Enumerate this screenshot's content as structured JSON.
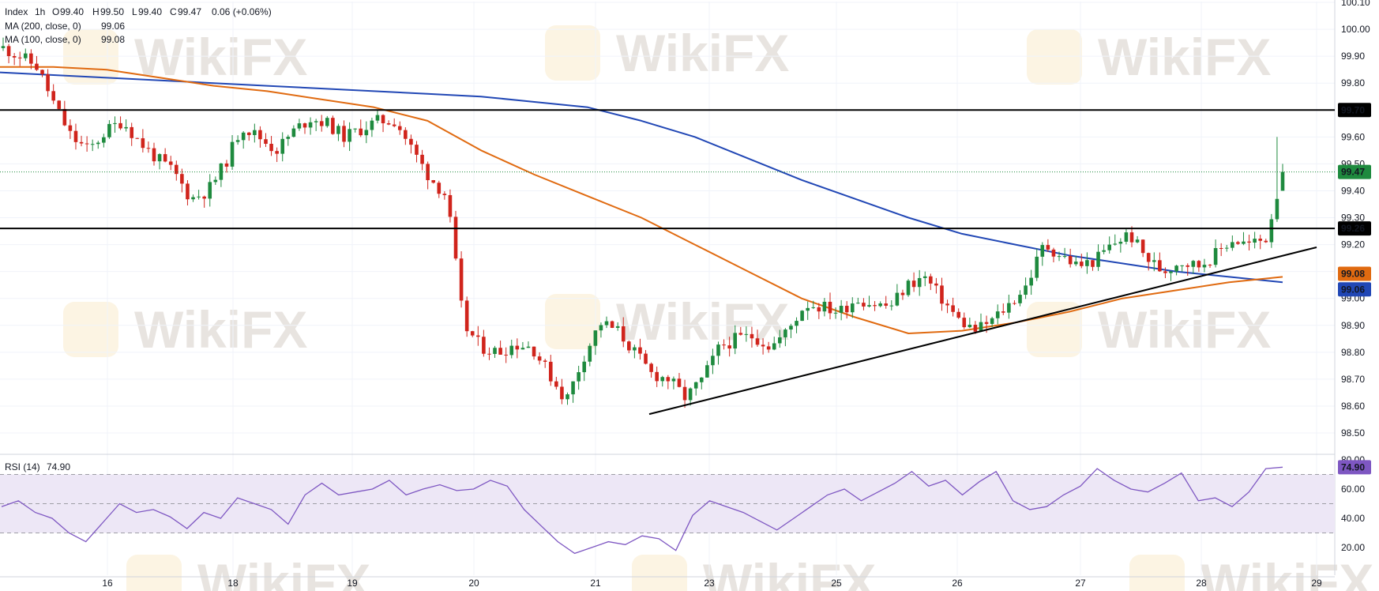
{
  "legend": {
    "symbol": "Index",
    "interval": "1h",
    "open_label": "O",
    "open": "99.40",
    "high_label": "H",
    "high": "99.50",
    "low_label": "L",
    "low": "99.40",
    "close_label": "C",
    "close": "99.47",
    "change": "0.06 (+0.06%)",
    "ma200_label": "MA (200, close, 0)",
    "ma200_value": "99.06",
    "ma100_label": "MA (100, close, 0)",
    "ma100_value": "99.08"
  },
  "rsi_legend": {
    "label": "RSI (14)",
    "value": "74.90"
  },
  "watermark_text": "WikiFX",
  "colors": {
    "up": "#26a69a",
    "down": "#ef5350",
    "up_candle": "#1e8a3e",
    "down_candle": "#d0241c",
    "ma200": "#2147b5",
    "ma100": "#e06a10",
    "rsi_line": "#7e57c2",
    "rsi_band": "#ede7f6",
    "hline": "#000000",
    "current_price": "#1e8a3e"
  },
  "chart_data": [
    {
      "type": "candlestick",
      "title": "Index, 1h",
      "x_ticks": [
        "16",
        "18",
        "19",
        "20",
        "21",
        "23",
        "25",
        "26",
        "27",
        "28",
        "29"
      ],
      "y_ticks": [
        "100.10",
        "100.00",
        "99.90",
        "99.80",
        "99.70",
        "99.60",
        "99.50",
        "99.40",
        "99.30",
        "99.20",
        "99.10",
        "99.00",
        "98.90",
        "98.80",
        "98.70",
        "98.60",
        "98.50"
      ],
      "ylim": [
        98.45,
        100.1
      ],
      "series": [
        {
          "name": "Index",
          "ohlc_summary": {
            "open": 99.4,
            "high": 99.5,
            "low": 99.4,
            "close": 99.47
          },
          "close_path": [
            99.93,
            99.9,
            99.86,
            99.72,
            99.6,
            99.55,
            99.62,
            99.66,
            99.58,
            99.52,
            99.47,
            99.37,
            99.4,
            99.5,
            99.64,
            99.6,
            99.55,
            99.62,
            99.67,
            99.65,
            99.6,
            99.63,
            99.66,
            99.66,
            99.55,
            99.45,
            99.38,
            98.9,
            98.82,
            98.8,
            98.83,
            98.82,
            98.72,
            98.62,
            98.78,
            98.91,
            98.88,
            98.8,
            98.72,
            98.7,
            98.63,
            98.7,
            98.82,
            98.85,
            98.86,
            98.82,
            98.88,
            98.98,
            98.97,
            98.95,
            99.0,
            98.98,
            98.97,
            99.05,
            99.08,
            99.0,
            98.92,
            98.88,
            98.92,
            98.98,
            99.05,
            99.2,
            99.16,
            99.12,
            99.14,
            99.2,
            99.24,
            99.15,
            99.1,
            99.14,
            99.12,
            99.16,
            99.22,
            99.2,
            99.22,
            99.47
          ]
        },
        {
          "name": "MA (200, close, 0)",
          "value": 99.06,
          "path": [
            99.84,
            99.83,
            99.82,
            99.81,
            99.8,
            99.79,
            99.78,
            99.77,
            99.76,
            99.75,
            99.73,
            99.71,
            99.66,
            99.6,
            99.52,
            99.44,
            99.37,
            99.3,
            99.24,
            99.2,
            99.16,
            99.13,
            99.1,
            99.08,
            99.06
          ]
        },
        {
          "name": "MA (100, close, 0)",
          "value": 99.08,
          "path": [
            99.86,
            99.86,
            99.85,
            99.82,
            99.79,
            99.77,
            99.74,
            99.71,
            99.66,
            99.55,
            99.46,
            99.38,
            99.3,
            99.2,
            99.1,
            99.0,
            98.93,
            98.87,
            98.88,
            98.91,
            98.95,
            99.0,
            99.03,
            99.06,
            99.08
          ]
        }
      ],
      "levels": [
        99.7,
        99.26
      ],
      "level_labels": [
        "99.70",
        "99.26"
      ],
      "current_price": 99.47,
      "current_price_label": "99.47",
      "ma200_tag": "99.06",
      "ma100_tag": "99.08",
      "trendline": {
        "from": {
          "x": "21",
          "y": 98.57
        },
        "to": {
          "x": "29",
          "y": 99.19
        }
      }
    },
    {
      "type": "line",
      "title": "RSI (14)",
      "y_ticks": [
        "80.00",
        "60.00",
        "40.00",
        "20.00"
      ],
      "ylim": [
        10,
        80
      ],
      "bands": [
        30,
        50,
        70
      ],
      "series": [
        {
          "name": "RSI (14)",
          "value": 74.9,
          "values": [
            48,
            52,
            44,
            40,
            30,
            24,
            37,
            50,
            44,
            46,
            41,
            33,
            44,
            40,
            54,
            50,
            46,
            36,
            56,
            64,
            56,
            58,
            60,
            66,
            56,
            60,
            63,
            59,
            60,
            66,
            62,
            46,
            35,
            24,
            16,
            20,
            24,
            22,
            28,
            26,
            18,
            42,
            52,
            48,
            44,
            38,
            32,
            40,
            48,
            56,
            60,
            52,
            58,
            64,
            72,
            62,
            66,
            56,
            65,
            72,
            52,
            46,
            48,
            56,
            62,
            74,
            66,
            60,
            58,
            64,
            71,
            52,
            54,
            48,
            58,
            74,
            75
          ]
        }
      ]
    }
  ]
}
